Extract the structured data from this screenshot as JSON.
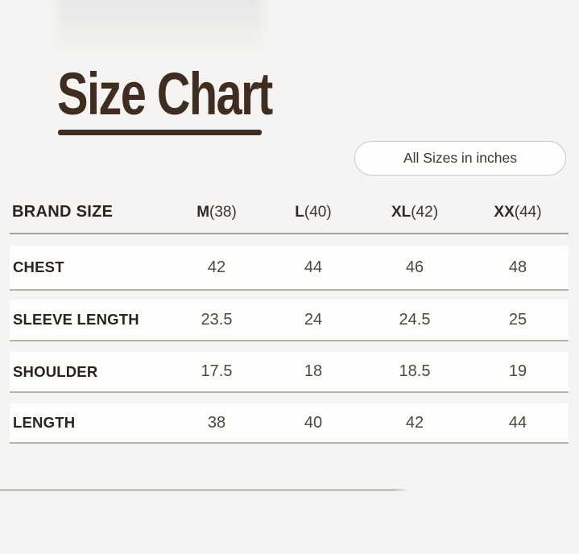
{
  "page": {
    "title": "Size Chart",
    "units_badge": "All Sizes in inches"
  },
  "colors": {
    "page_bg": "#f5f4f2",
    "title_brown": "#3e2d20",
    "row_bg": "#fdfdfc",
    "label_text": "#2b241d",
    "value_text": "#4c4844",
    "separator_gray": "#b3b1ae",
    "badge_border": "#cbc9c7"
  },
  "table": {
    "header_label": "BRAND SIZE",
    "columns": [
      {
        "letter": "M",
        "paren": "(38)"
      },
      {
        "letter": "L",
        "paren": "(40)"
      },
      {
        "letter": "XL",
        "paren": "(42)"
      },
      {
        "letter": "XX",
        "paren": "(44)"
      }
    ],
    "rows": [
      {
        "label": "CHEST",
        "values": [
          "42",
          "44",
          "46",
          "48"
        ]
      },
      {
        "label": "SLEEVE LENGTH",
        "values": [
          "23.5",
          "24",
          "24.5",
          "25"
        ]
      },
      {
        "label": "SHOULDER",
        "values": [
          "17.5",
          "18",
          "18.5",
          "19"
        ]
      },
      {
        "label": "LENGTH",
        "values": [
          "38",
          "40",
          "42",
          "44"
        ]
      }
    ]
  },
  "chart_data": {
    "type": "table",
    "title": "Size Chart",
    "subtitle": "All Sizes in inches",
    "columns": [
      "BRAND SIZE",
      "M(38)",
      "L(40)",
      "XL(42)",
      "XX(44)"
    ],
    "rows": [
      [
        "CHEST",
        42,
        44,
        46,
        48
      ],
      [
        "SLEEVE LENGTH",
        23.5,
        24,
        24.5,
        25
      ],
      [
        "SHOULDER",
        17.5,
        18,
        18.5,
        19
      ],
      [
        "LENGTH",
        38,
        40,
        42,
        44
      ]
    ]
  }
}
